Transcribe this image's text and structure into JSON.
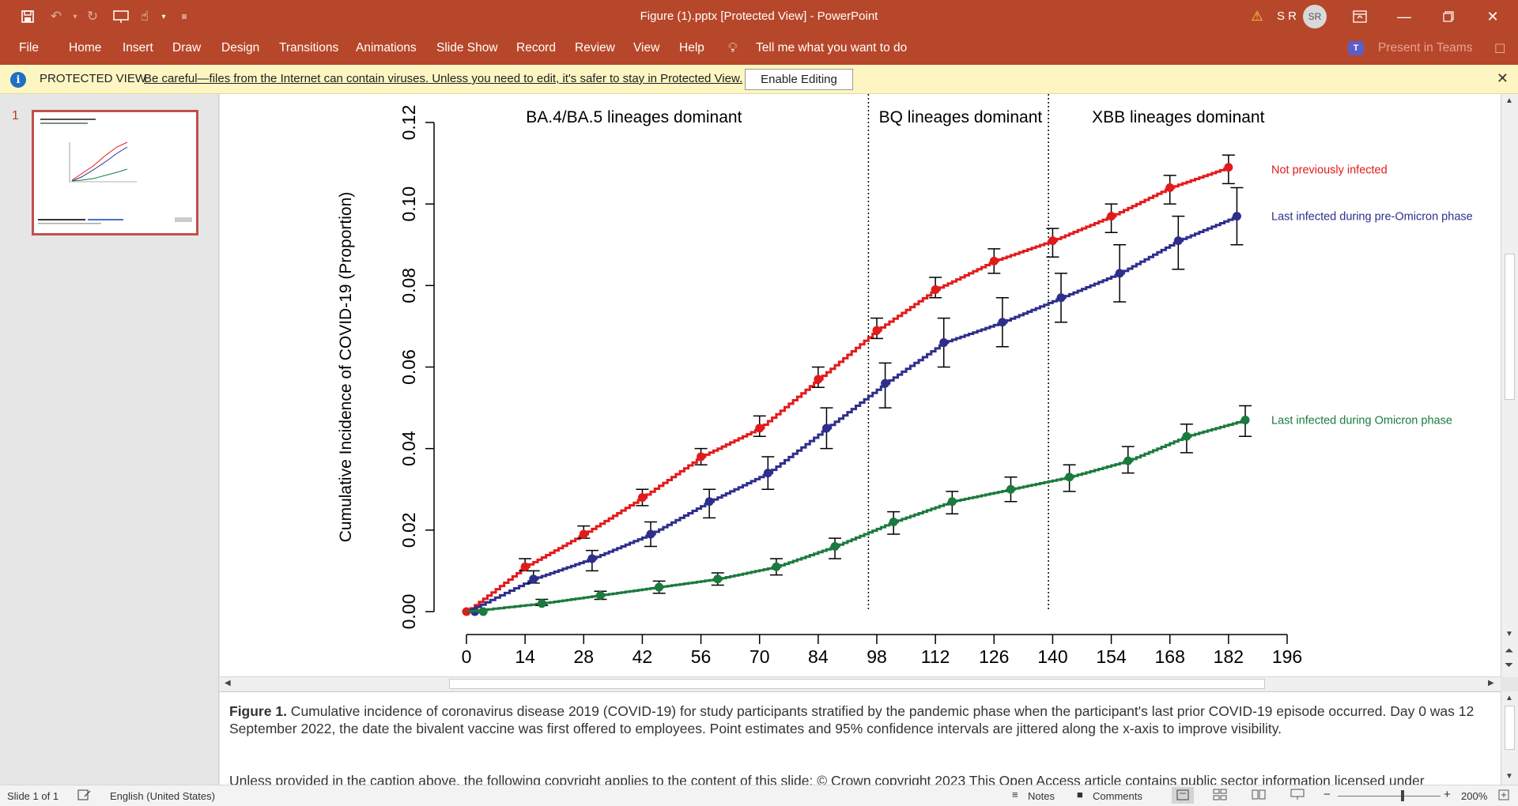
{
  "window": {
    "title": "Figure (1).pptx [Protected View]  -  PowerPoint",
    "user_initials": "S R",
    "avatar": "SR"
  },
  "ribbon": {
    "file": "File",
    "tabs": [
      "Home",
      "Insert",
      "Draw",
      "Design",
      "Transitions",
      "Animations",
      "Slide Show",
      "Record",
      "Review",
      "View",
      "Help"
    ],
    "tell_me": "Tell me what you want to do",
    "present_in_teams": "Present in Teams"
  },
  "protected_view": {
    "label": "PROTECTED VIEW",
    "message": "Be careful—files from the Internet can contain viruses. Unless you need to edit, it's safer to stay in Protected View.",
    "enable_button": "Enable Editing"
  },
  "thumbnails": {
    "slide_number": "1"
  },
  "chart_data": {
    "type": "line",
    "ylabel": "Cumulative Incidence of COVID-19 (Proportion)",
    "xlabel": "",
    "x_ticks": [
      0,
      14,
      28,
      42,
      56,
      70,
      84,
      98,
      112,
      126,
      140,
      154,
      168,
      182,
      196
    ],
    "y_ticks": [
      "0.00",
      "0.02",
      "0.04",
      "0.06",
      "0.08",
      "0.10",
      "0.12"
    ],
    "xlim": [
      0,
      196
    ],
    "ylim": [
      0,
      0.12
    ],
    "phase_lines": [
      96,
      139
    ],
    "phase_labels": [
      {
        "text": "BA.4/BA.5 lineages dominant",
        "x": 40
      },
      {
        "text": "BQ lineages dominant",
        "x": 118
      },
      {
        "text": "XBB lineages dominant",
        "x": 170
      }
    ],
    "series": [
      {
        "name": "Not previously infected",
        "color": "#e31a1c",
        "x": [
          0,
          14,
          28,
          42,
          56,
          70,
          84,
          98,
          112,
          126,
          140,
          154,
          168,
          182
        ],
        "y": [
          0.0,
          0.011,
          0.019,
          0.028,
          0.038,
          0.045,
          0.057,
          0.069,
          0.079,
          0.086,
          0.091,
          0.097,
          0.104,
          0.109
        ],
        "point_x": [
          0,
          14,
          28,
          42,
          56,
          70,
          84,
          98,
          112,
          126,
          140,
          154,
          168,
          182
        ],
        "ci_low": [
          0.0,
          0.01,
          0.018,
          0.026,
          0.036,
          0.043,
          0.055,
          0.067,
          0.077,
          0.083,
          0.087,
          0.093,
          0.1,
          0.105
        ],
        "ci_high": [
          0.0,
          0.013,
          0.021,
          0.03,
          0.04,
          0.048,
          0.06,
          0.072,
          0.082,
          0.089,
          0.094,
          0.1,
          0.107,
          0.112
        ]
      },
      {
        "name": "Last infected during pre-Omicron phase",
        "color": "#2e2e8c",
        "x": [
          0,
          16,
          30,
          44,
          58,
          72,
          86,
          100,
          114,
          128,
          142,
          156,
          170,
          184
        ],
        "y": [
          0.0,
          0.008,
          0.013,
          0.019,
          0.027,
          0.034,
          0.045,
          0.056,
          0.066,
          0.071,
          0.077,
          0.083,
          0.091,
          0.097
        ],
        "point_x": [
          2,
          16,
          30,
          44,
          58,
          72,
          86,
          100,
          114,
          128,
          142,
          156,
          170,
          184
        ],
        "ci_low": [
          0.0,
          0.007,
          0.01,
          0.016,
          0.023,
          0.03,
          0.04,
          0.05,
          0.06,
          0.065,
          0.071,
          0.076,
          0.084,
          0.09
        ],
        "ci_high": [
          0.0,
          0.01,
          0.015,
          0.022,
          0.03,
          0.038,
          0.05,
          0.061,
          0.072,
          0.077,
          0.083,
          0.09,
          0.097,
          0.104
        ]
      },
      {
        "name": "Last infected during Omicron phase",
        "color": "#1b7a3e",
        "x": [
          0,
          18,
          32,
          46,
          60,
          74,
          88,
          102,
          116,
          130,
          144,
          158,
          172,
          186
        ],
        "y": [
          0.0,
          0.002,
          0.004,
          0.006,
          0.008,
          0.011,
          0.016,
          0.022,
          0.027,
          0.03,
          0.033,
          0.037,
          0.043,
          0.047
        ],
        "point_x": [
          4,
          18,
          32,
          46,
          60,
          74,
          88,
          102,
          116,
          130,
          144,
          158,
          172,
          186
        ],
        "ci_low": [
          0.0,
          0.0015,
          0.003,
          0.0045,
          0.0065,
          0.009,
          0.013,
          0.019,
          0.024,
          0.027,
          0.0295,
          0.034,
          0.039,
          0.043
        ],
        "ci_high": [
          0.0,
          0.003,
          0.005,
          0.0075,
          0.0095,
          0.013,
          0.018,
          0.0245,
          0.0295,
          0.033,
          0.036,
          0.0405,
          0.046,
          0.0505
        ]
      }
    ]
  },
  "notes": {
    "figure_label": "Figure 1.",
    "caption": " Cumulative incidence of coronavirus disease 2019 (COVID-19) for study participants stratified by the pandemic phase when the participant's last prior COVID-19 episode occurred. Day 0 was 12 September 2022, the date the bivalent vaccine was first offered to employees. Point estimates and 95% confidence intervals are jittered along the x-axis to improve visibility.",
    "copyright": "Unless provided in the caption above, the following copyright applies to the content of this slide: © Crown copyright 2023 This Open Access article contains public sector information licensed under"
  },
  "status": {
    "slide": "Slide 1 of 1",
    "language": "English (United States)",
    "notes": "Notes",
    "comments": "Comments",
    "zoom": "200%"
  }
}
